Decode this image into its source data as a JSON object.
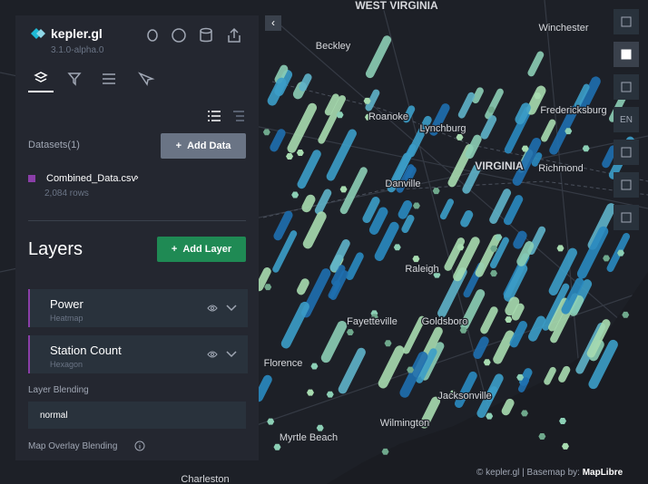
{
  "app": {
    "name": "kepler.gl",
    "version": "3.1.0-alpha.0"
  },
  "datasets": {
    "label": "Datasets(1)",
    "add_button": "Add Data",
    "items": [
      {
        "name": "Combined_Data.csv",
        "rows": "2,084 rows"
      }
    ]
  },
  "layers": {
    "title": "Layers",
    "add_button": "Add Layer",
    "items": [
      {
        "name": "Power",
        "type": "Heatmap"
      },
      {
        "name": "Station Count",
        "type": "Hexagon"
      }
    ]
  },
  "layer_blending": {
    "label": "Layer Blending",
    "value": "normal"
  },
  "map_overlay_blending": {
    "label": "Map Overlay Blending"
  },
  "map_controls": {
    "locale": "EN"
  },
  "map_labels": [
    "WEST VIRGINIA",
    "Winchester",
    "Beckley",
    "Roanoke",
    "Lynchburg",
    "Fredericksburg",
    "VIRGINIA",
    "Richmond",
    "Danville",
    "Raleigh",
    "Fayetteville",
    "Goldsboro",
    "Florence",
    "Jacksonville",
    "Wilmington",
    "Myrtle Beach",
    "Charleston"
  ],
  "attribution": {
    "text": "© kepler.gl | Basemap by:",
    "brand": "MapLibre"
  }
}
